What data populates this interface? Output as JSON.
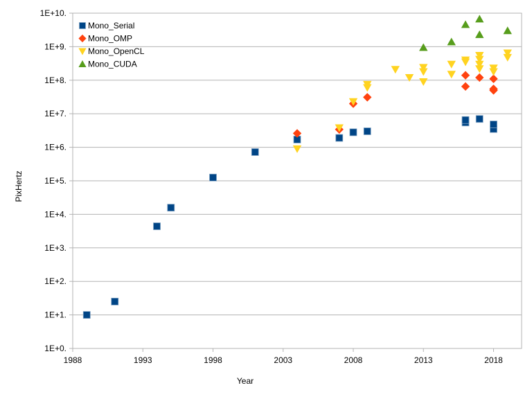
{
  "chart_data": {
    "type": "scatter",
    "xlabel": "Year",
    "ylabel": "PixHertz",
    "xlim": [
      1988,
      2020
    ],
    "ylim": [
      1,
      10000000000.0
    ],
    "y_scale": "log",
    "x_ticks": [
      "1988",
      "1993",
      "1998",
      "2003",
      "2008",
      "2013",
      "2018"
    ],
    "y_ticks": [
      "1E+0.",
      "1E+1.",
      "1E+2.",
      "1E+3.",
      "1E+4.",
      "1E+5.",
      "1E+6.",
      "1E+7.",
      "1E+8.",
      "1E+9.",
      "1E+10."
    ],
    "grid": true,
    "legend_position": "top-left",
    "series": [
      {
        "name": "Mono_Serial",
        "marker": "square",
        "color": "#004586",
        "points": [
          [
            1989,
            10
          ],
          [
            1991,
            25
          ],
          [
            1994,
            4400
          ],
          [
            1995,
            15800
          ],
          [
            1998,
            125000
          ],
          [
            2001,
            720000
          ],
          [
            2004,
            1700000
          ],
          [
            2007,
            1900000
          ],
          [
            2008,
            2800000
          ],
          [
            2009,
            3000000
          ],
          [
            2016,
            5500000
          ],
          [
            2016,
            6500000
          ],
          [
            2017,
            7000000
          ],
          [
            2018,
            3500000
          ],
          [
            2018,
            4800000
          ]
        ]
      },
      {
        "name": "Mono_OMP",
        "marker": "diamond",
        "color": "#ff420e",
        "points": [
          [
            2004,
            2600000
          ],
          [
            2007,
            3400000
          ],
          [
            2008,
            20000000
          ],
          [
            2009,
            31000000
          ],
          [
            2016,
            140000000
          ],
          [
            2016,
            65000000
          ],
          [
            2017,
            120000000
          ],
          [
            2018,
            110000000
          ],
          [
            2018,
            50000000
          ],
          [
            2018,
            55000000
          ]
        ]
      },
      {
        "name": "Mono_OpenCL",
        "marker": "triangle-down",
        "color": "#ffd320",
        "points": [
          [
            2004,
            900000
          ],
          [
            2007,
            3800000
          ],
          [
            2008,
            23000000
          ],
          [
            2009,
            60000000
          ],
          [
            2009,
            75000000
          ],
          [
            2011,
            210000000
          ],
          [
            2012,
            120000000
          ],
          [
            2013,
            180000000
          ],
          [
            2013,
            240000000
          ],
          [
            2013,
            90000000
          ],
          [
            2015,
            150000000
          ],
          [
            2015,
            300000000
          ],
          [
            2016,
            350000000
          ],
          [
            2016,
            400000000
          ],
          [
            2017,
            550000000
          ],
          [
            2017,
            420000000
          ],
          [
            2017,
            300000000
          ],
          [
            2017,
            220000000
          ],
          [
            2018,
            230000000
          ],
          [
            2018,
            180000000
          ],
          [
            2019,
            650000000
          ],
          [
            2019,
            480000000
          ]
        ]
      },
      {
        "name": "Mono_CUDA",
        "marker": "triangle-up",
        "color": "#579d1c",
        "points": [
          [
            2013,
            950000000
          ],
          [
            2015,
            1400000000
          ],
          [
            2016,
            4600000000
          ],
          [
            2017,
            6700000000
          ],
          [
            2017,
            2300000000
          ],
          [
            2019,
            3000000000
          ]
        ]
      }
    ]
  }
}
